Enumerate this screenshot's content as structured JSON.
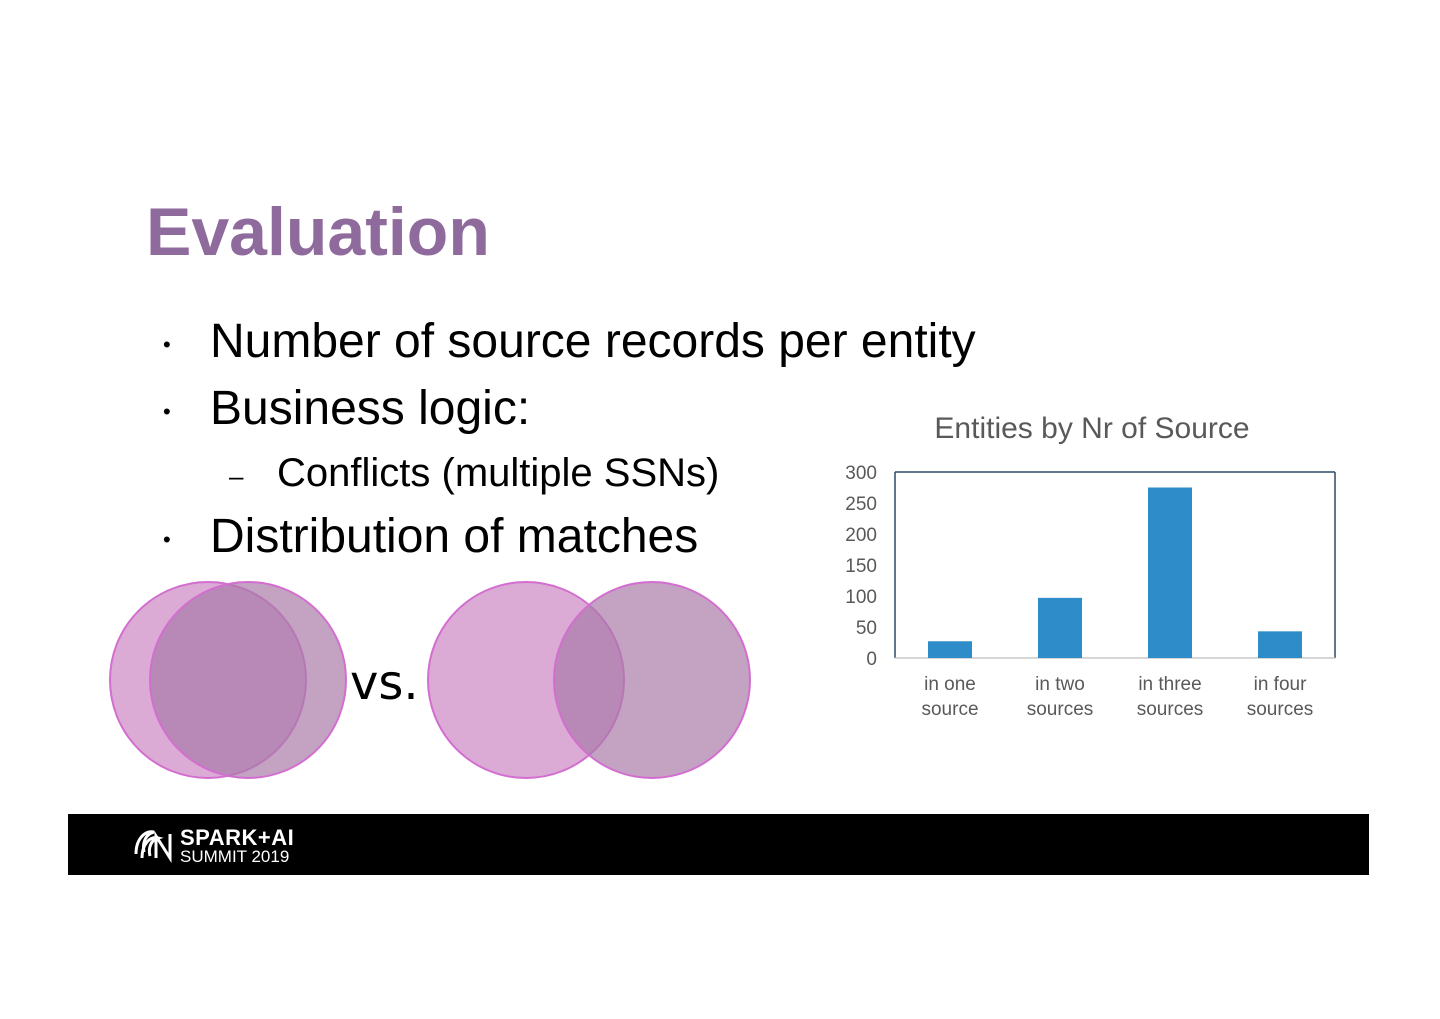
{
  "slide": {
    "title": "Evaluation",
    "bullets": [
      "Number of source records per entity",
      "Business logic:",
      "Conflicts (multiple SSNs)",
      "Distribution of matches"
    ],
    "bullet_marker": "•",
    "sub_bullet_marker": "–",
    "vs_label": "vs."
  },
  "venn": {
    "fill_left": "#c77dbf",
    "fill_right": "#a97aa8",
    "overlap": "#9c5296",
    "stroke": "#d36ed0"
  },
  "chart_data": {
    "type": "bar",
    "title": "Entities by Nr of Source",
    "categories": [
      "in one source",
      "in two sources",
      "in three sources",
      "in four sources"
    ],
    "category_lines": [
      [
        "in one",
        "source"
      ],
      [
        "in two",
        "sources"
      ],
      [
        "in three",
        "sources"
      ],
      [
        "in four",
        "sources"
      ]
    ],
    "values": [
      27,
      97,
      275,
      43
    ],
    "ylim": [
      0,
      300
    ],
    "yticks": [
      0,
      50,
      100,
      150,
      200,
      250,
      300
    ],
    "xlabel": "",
    "ylabel": "",
    "color": "#2e8dc8",
    "legend": false,
    "grid": false
  },
  "footer": {
    "logo_line1": "SPARK+AI",
    "logo_line2": "SUMMIT 2019"
  }
}
